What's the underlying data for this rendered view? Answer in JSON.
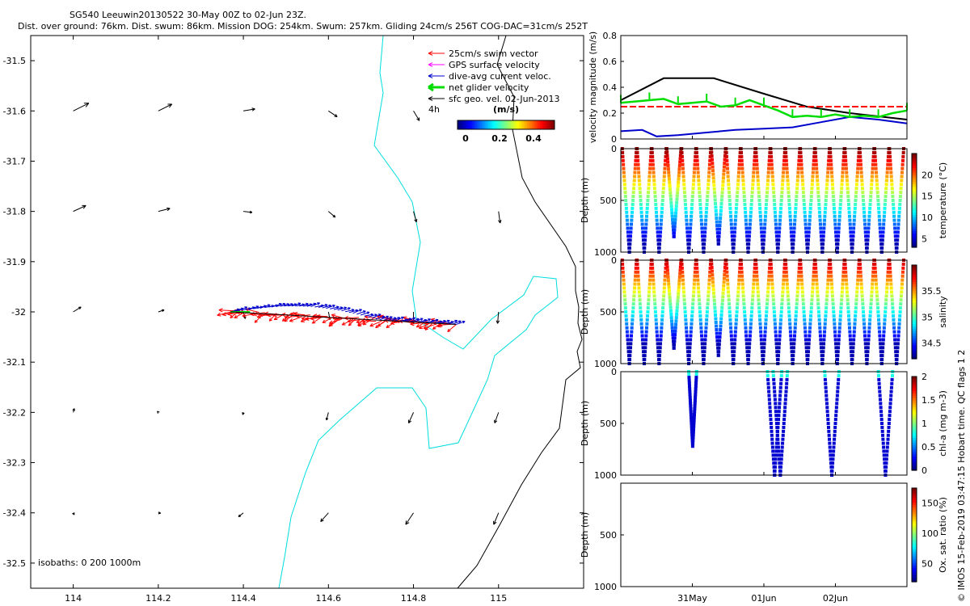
{
  "title_line1": "SG540 Leeuwin20130522 30-May 00Z to 02-Jun 23Z.",
  "title_line2": "Dist. over ground: 76km. Dist. swum: 86km. Mission DOG: 254km. Swum: 257km. Gliding 24cm/s 256T COG-DAC=31cm/s 252T",
  "colors": {
    "swim": "#ff0000",
    "gps": "#ff00ff",
    "dac": "#0000cc",
    "net": "#00dd00",
    "sfc": "#000000",
    "isobath_shallow": "#00dddd",
    "isobath_deep": "#000000"
  },
  "chart_data": [
    {
      "type": "quiver-map",
      "xlim": [
        113.9,
        115.2
      ],
      "ylim": [
        -32.55,
        -31.45
      ],
      "xticks": [
        114,
        114.2,
        114.4,
        114.6,
        114.8,
        115
      ],
      "xtick_labels": [
        "114",
        "114.2",
        "114.4",
        "114.6",
        "114.8",
        "115"
      ],
      "yticks": [
        -31.5,
        -31.6,
        -31.7,
        -31.8,
        -31.9,
        -32,
        -32.1,
        -32.2,
        -32.3,
        -32.4,
        -32.5
      ],
      "ytick_labels": [
        "-31.5",
        "-31.6",
        "-31.7",
        "-31.8",
        "-31.9",
        "-32",
        "-32.1",
        "-32.2",
        "-32.3",
        "-32.4",
        "-32.5"
      ],
      "legend": [
        {
          "label": "25cm/s swim vector",
          "color": "#ff0000"
        },
        {
          "label": "GPS surface velocity",
          "color": "#ff00ff"
        },
        {
          "label": "dive-avg current veloc.",
          "color": "#0000cc"
        },
        {
          "label": "net glider velocity",
          "color": "#00dd00"
        },
        {
          "label": "sfc geo. vel. 02-Jun-2013",
          "color": "#000000"
        }
      ],
      "legend_position": "top-right",
      "colorbar": {
        "label": "(m/s)",
        "ticks": [
          "0",
          "0.2",
          "0.4"
        ],
        "prefix": "4h"
      },
      "isobath_label": "isobaths: 0   200  1000m",
      "sfc_vectors": [
        {
          "lon": 114.0,
          "lat": -31.6,
          "u": 0.08,
          "v": 0.04
        },
        {
          "lon": 114.2,
          "lat": -31.6,
          "u": 0.07,
          "v": 0.035
        },
        {
          "lon": 114.4,
          "lat": -31.6,
          "u": 0.06,
          "v": 0.01
        },
        {
          "lon": 114.6,
          "lat": -31.6,
          "u": 0.045,
          "v": -0.03
        },
        {
          "lon": 114.8,
          "lat": -31.6,
          "u": 0.03,
          "v": -0.05
        },
        {
          "lon": 114.0,
          "lat": -31.8,
          "u": 0.065,
          "v": 0.03
        },
        {
          "lon": 114.2,
          "lat": -31.8,
          "u": 0.06,
          "v": 0.015
        },
        {
          "lon": 114.4,
          "lat": -31.8,
          "u": 0.045,
          "v": -0.005
        },
        {
          "lon": 114.6,
          "lat": -31.8,
          "u": 0.035,
          "v": -0.03
        },
        {
          "lon": 114.8,
          "lat": -31.8,
          "u": 0.015,
          "v": -0.055
        },
        {
          "lon": 115.0,
          "lat": -31.8,
          "u": 0.008,
          "v": -0.06
        },
        {
          "lon": 114.0,
          "lat": -32.0,
          "u": 0.04,
          "v": 0.025
        },
        {
          "lon": 114.2,
          "lat": -32.0,
          "u": 0.03,
          "v": 0.01
        },
        {
          "lon": 114.4,
          "lat": -32.0,
          "u": 0.01,
          "v": -0.035
        },
        {
          "lon": 114.6,
          "lat": -32.0,
          "u": 0.008,
          "v": -0.04
        },
        {
          "lon": 114.8,
          "lat": -32.0,
          "u": 0.0,
          "v": -0.06
        },
        {
          "lon": 115.0,
          "lat": -32.0,
          "u": -0.005,
          "v": -0.06
        },
        {
          "lon": 114.0,
          "lat": -32.2,
          "u": 0.005,
          "v": 0.02
        },
        {
          "lon": 114.2,
          "lat": -32.2,
          "u": -0.005,
          "v": 0.006
        },
        {
          "lon": 114.4,
          "lat": -32.2,
          "u": -0.003,
          "v": -0.012
        },
        {
          "lon": 114.6,
          "lat": -32.2,
          "u": -0.01,
          "v": -0.04
        },
        {
          "lon": 114.8,
          "lat": -32.2,
          "u": -0.025,
          "v": -0.055
        },
        {
          "lon": 115.0,
          "lat": -32.2,
          "u": -0.02,
          "v": -0.055
        },
        {
          "lon": 114.0,
          "lat": -32.4,
          "u": 0.005,
          "v": -0.01
        },
        {
          "lon": 114.2,
          "lat": -32.4,
          "u": 0.012,
          "v": -0.002
        },
        {
          "lon": 114.4,
          "lat": -32.4,
          "u": -0.025,
          "v": -0.02
        },
        {
          "lon": 114.6,
          "lat": -32.4,
          "u": -0.04,
          "v": -0.045
        },
        {
          "lon": 114.8,
          "lat": -32.4,
          "u": -0.04,
          "v": -0.06
        },
        {
          "lon": 115.0,
          "lat": -32.4,
          "u": -0.025,
          "v": -0.06
        }
      ],
      "track": {
        "lon_start": 114.37,
        "lon_end": 114.9,
        "lat_start": -32.0,
        "lat_end": -32.025
      }
    },
    {
      "type": "line",
      "ylabel": "velocity magnitude (m/s)",
      "ylim": [
        0,
        0.8
      ],
      "yticks": [
        0,
        0.2,
        0.4,
        0.6,
        0.8
      ],
      "ytick_labels": [
        "0",
        "0.2",
        "0.4",
        "0.6",
        "0.8"
      ],
      "xlim": [
        0,
        4
      ],
      "xtick_days": [
        1,
        2,
        3
      ],
      "xtick_labels": [
        "31May",
        "01Jun",
        "02Jun"
      ],
      "series": [
        {
          "name": "sfc geostrophic",
          "color": "#000000",
          "x": [
            0,
            0.6,
            1.3,
            2.0,
            2.6,
            3.2,
            4.0
          ],
          "y": [
            0.3,
            0.47,
            0.47,
            0.35,
            0.25,
            0.2,
            0.15
          ]
        },
        {
          "name": "swim 25cm/s",
          "color": "#ff0000",
          "x": [
            0,
            4
          ],
          "y": [
            0.25,
            0.25
          ]
        },
        {
          "name": "dive-avg current",
          "color": "#0000cc",
          "x": [
            0,
            0.3,
            0.5,
            0.8,
            1.2,
            1.6,
            2.0,
            2.4,
            2.8,
            3.2,
            3.6,
            4.0
          ],
          "y": [
            0.06,
            0.07,
            0.02,
            0.03,
            0.05,
            0.07,
            0.08,
            0.09,
            0.13,
            0.17,
            0.15,
            0.12
          ]
        },
        {
          "name": "net glider",
          "color": "#00dd00",
          "x": [
            0,
            0.2,
            0.4,
            0.6,
            0.8,
            1.0,
            1.2,
            1.4,
            1.6,
            1.8,
            2.0,
            2.2,
            2.4,
            2.6,
            2.8,
            3.0,
            3.2,
            3.4,
            3.6,
            3.8,
            4.0
          ],
          "y": [
            0.28,
            0.29,
            0.3,
            0.31,
            0.27,
            0.28,
            0.29,
            0.25,
            0.26,
            0.3,
            0.26,
            0.22,
            0.17,
            0.18,
            0.17,
            0.19,
            0.17,
            0.18,
            0.17,
            0.2,
            0.22
          ]
        }
      ]
    },
    {
      "type": "heatmap",
      "ylabel": "Depth (m)",
      "cblabel": "temperature (°C)",
      "ylim": [
        0,
        1000
      ],
      "yticks": [
        0,
        500,
        1000
      ],
      "ytick_labels": [
        "0",
        "500",
        "1000"
      ],
      "cticks": [
        "5",
        "10",
        "15",
        "20"
      ],
      "crange": [
        3,
        25
      ],
      "profiles": 19,
      "max_depth": 1000
    },
    {
      "type": "heatmap",
      "ylabel": "Depth (m)",
      "cblabel": "salinity",
      "ylim": [
        0,
        1000
      ],
      "yticks": [
        0,
        500,
        1000
      ],
      "ytick_labels": [
        "0",
        "500",
        "1000"
      ],
      "cticks": [
        "34.5",
        "35",
        "35.5"
      ],
      "crange": [
        34.2,
        36.0
      ],
      "profiles": 19,
      "max_depth": 1000
    },
    {
      "type": "heatmap",
      "ylabel": "Depth (m)",
      "cblabel": "chl-a (mg m-3)",
      "ylim": [
        0,
        1000
      ],
      "yticks": [
        0,
        500,
        1000
      ],
      "ytick_labels": [
        "0",
        "500",
        "1000"
      ],
      "cticks": [
        "0",
        "0.5",
        "1",
        "1.5",
        "2"
      ],
      "crange": [
        0,
        2
      ],
      "casts_days": [
        1.0,
        2.15,
        2.95,
        3.7
      ]
    },
    {
      "type": "heatmap",
      "ylabel": "Depth (m)",
      "cblabel": "Ox. sat. ratio (%)",
      "ylim": [
        0,
        1000
      ],
      "yticks": [
        500,
        1000
      ],
      "ytick_labels": [
        "500",
        "1000"
      ],
      "cticks": [
        "50",
        "100",
        "150"
      ],
      "crange": [
        20,
        175
      ]
    }
  ],
  "footer": "© IMOS 15-Feb-2019 03:47:15 Hobart time. QC flags 1  2"
}
